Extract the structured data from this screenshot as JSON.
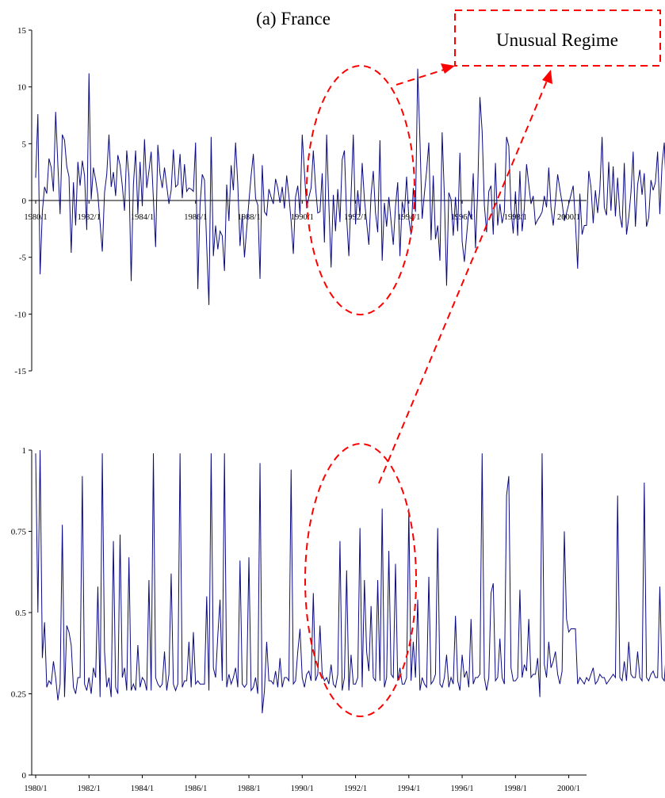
{
  "chart_data": [
    {
      "type": "line",
      "title": "(a) France",
      "ylim": [
        -15,
        15
      ],
      "yticks": [
        "15",
        "10",
        "5",
        "0",
        "-5",
        "-10",
        "-15"
      ],
      "xticks": [
        "1980/1",
        "1982/1",
        "1984/1",
        "1986/1",
        "1988/1",
        "1990/1",
        "1992/1",
        "1994/1",
        "1996/1",
        "1998/1",
        "2000/1"
      ],
      "xrange": [
        "1980/1",
        "2000/9"
      ],
      "series": [
        {
          "color": "#0a0a80",
          "values": [
            2.0,
            7.6,
            -6.5,
            -1.0,
            1.2,
            0.6,
            3.7,
            2.9,
            0.8,
            7.8,
            3.1,
            -1.2,
            5.8,
            5.3,
            3.0,
            2.1,
            -4.6,
            1.6,
            -2.2,
            3.4,
            1.3,
            3.5,
            2.2,
            -2.6,
            11.2,
            0.1,
            2.9,
            1.8,
            0.5,
            -2.0,
            -4.5,
            0.7,
            2.3,
            5.8,
            1.2,
            2.5,
            0.4,
            4.0,
            3.1,
            1.3,
            -0.9,
            4.4,
            2.1,
            -7.1,
            1.4,
            4.4,
            -1.2,
            3.4,
            -0.5,
            5.4,
            1.1,
            2.6,
            4.3,
            0.1,
            -4.1,
            4.9,
            2.3,
            1.1,
            2.9,
            1.3,
            -0.3,
            0.9,
            4.5,
            1.2,
            1.4,
            4.1,
            0.2,
            3.2,
            0.8,
            1.1,
            1.0,
            0.8,
            5.1,
            -7.8,
            -0.4,
            2.3,
            1.8,
            -4.0,
            -9.2,
            5.6,
            -4.9,
            -2.2,
            -4.3,
            -2.7,
            -3.1,
            -6.2,
            1.4,
            -1.8,
            3.1,
            0.9,
            5.1,
            1.4,
            -4.0,
            -1.2,
            -5.0,
            -2.5,
            -0.1,
            2.2,
            4.1,
            0.2,
            -0.4,
            -6.9,
            3.1,
            -1.0,
            -1.3,
            1.0,
            0.3,
            -0.3,
            1.9,
            1.1,
            -0.2,
            1.2,
            -0.7,
            2.2,
            0.4,
            -1.8,
            -4.7,
            0.3,
            1.3,
            -1.2,
            5.8,
            2.5,
            -0.7,
            0.3,
            1.1,
            4.4,
            1.2,
            -1.1,
            -1.0,
            2.4,
            -3.7,
            5.8,
            -0.4,
            -5.9,
            0.5,
            -2.7,
            1.0,
            -1.9,
            3.6,
            4.4,
            -1.5,
            -4.9,
            0.5,
            5.8,
            -2.1,
            0.9,
            -1.3,
            3.3,
            0.1,
            -1.9,
            -3.9,
            0.5,
            2.6,
            -1.1,
            -2.8,
            5.3,
            -5.3,
            -0.2,
            -2.3,
            0.3,
            -1.8,
            -3.9,
            -0.5,
            1.6,
            -4.9,
            -0.1,
            -1.2,
            2.1,
            -1.6,
            -3.0,
            1.1,
            -1.0,
            11.6,
            5.3,
            -1.6,
            0.6,
            2.6,
            5.1,
            -3.5,
            2.2,
            -3.4,
            -2.2,
            -5.3,
            6.0,
            0.4,
            -7.5,
            0.7,
            0.1,
            -3.1,
            0.3,
            -2.7,
            4.2,
            -3.6,
            -5.4,
            -3.1,
            -0.9,
            -1.6,
            2.4,
            -4.2,
            0.8,
            9.1,
            6.1,
            -0.4,
            -2.8,
            0.8,
            1.3,
            -3.0,
            3.3,
            -2.2,
            -0.3,
            -2.0,
            -1.0,
            5.6,
            4.8,
            -0.7,
            -2.9,
            0.8,
            -3.1,
            2.6,
            -2.7,
            -0.7,
            3.2,
            1.4,
            -0.3,
            0.4,
            -2.1,
            -1.7,
            -1.4,
            -1.0,
            0.4,
            -0.6,
            2.9,
            -0.6,
            -2.2,
            -0.1,
            2.3,
            1.0,
            -0.2,
            -1.8,
            -1.1,
            -0.3,
            0.5,
            1.3,
            -1.9,
            -6.0,
            0.6,
            -3.0,
            -2.2,
            -2.2,
            2.6,
            1.2,
            -2.0,
            0.9,
            -1.1,
            1.0,
            5.6,
            -0.6,
            -1.3,
            3.4,
            -0.9,
            3.0,
            -1.4,
            2.0,
            -1.3,
            -2.4,
            3.3,
            -3.0,
            -1.5,
            0.7,
            4.3,
            -2.3,
            1.4,
            2.7,
            0.5,
            2.4,
            -2.3,
            -1.5,
            1.8,
            0.9,
            1.6,
            4.3,
            -1.2,
            3.2,
            5.1,
            0.2,
            2.7,
            2.6,
            -1.6,
            4.7,
            0.1,
            -2.6,
            2.2,
            -1.8,
            2.3,
            -0.1,
            1.8,
            -0.7,
            -4.6,
            1.7,
            -1.4,
            2.3,
            -1.3,
            1.5,
            -0.9,
            -2.6,
            -2.8,
            -1.3,
            -3.3,
            -2.9,
            0.0,
            1.1,
            3.1,
            3.0,
            2.9,
            2.1,
            2.3,
            -0.5,
            1.6,
            -3.2,
            -0.4,
            -1.0,
            3.6,
            0.9,
            1.3,
            -2.3,
            -1.1,
            0.8,
            4.6,
            -2.2,
            3.9,
            3.7,
            0.6,
            2.1,
            1.1,
            4.7,
            -2.4,
            -2.2,
            -2.1,
            2.8,
            4.3,
            0.4
          ]
        }
      ]
    },
    {
      "type": "line",
      "ylim": [
        0,
        1
      ],
      "yticks": [
        "1",
        "0.75",
        "0.5",
        "0.25",
        "0"
      ],
      "xticks": [
        "1980/1",
        "1982/1",
        "1984/1",
        "1986/1",
        "1988/1",
        "1990/1",
        "1992/1",
        "1994/1",
        "1996/1",
        "1998/1",
        "2000/1"
      ],
      "xrange": [
        "1980/1",
        "2000/9"
      ],
      "series": [
        {
          "color": "#0a0a80",
          "values": [
            0.99,
            0.5,
            1.0,
            0.36,
            0.47,
            0.27,
            0.29,
            0.28,
            0.35,
            0.3,
            0.23,
            0.28,
            0.77,
            0.24,
            0.46,
            0.44,
            0.4,
            0.27,
            0.25,
            0.3,
            0.3,
            0.92,
            0.28,
            0.26,
            0.3,
            0.25,
            0.33,
            0.3,
            0.58,
            0.24,
            0.99,
            0.38,
            0.27,
            0.3,
            0.24,
            0.72,
            0.27,
            0.25,
            0.74,
            0.3,
            0.33,
            0.26,
            0.67,
            0.26,
            0.28,
            0.26,
            0.4,
            0.27,
            0.3,
            0.29,
            0.26,
            0.6,
            0.26,
            0.99,
            0.3,
            0.28,
            0.27,
            0.28,
            0.38,
            0.26,
            0.31,
            0.62,
            0.28,
            0.26,
            0.28,
            0.99,
            0.27,
            0.29,
            0.29,
            0.41,
            0.27,
            0.44,
            0.28,
            0.29,
            0.28,
            0.28,
            0.28,
            0.55,
            0.26,
            0.99,
            0.33,
            0.3,
            0.43,
            0.54,
            0.29,
            0.99,
            0.27,
            0.31,
            0.28,
            0.3,
            0.33,
            0.27,
            0.66,
            0.28,
            0.27,
            0.28,
            0.67,
            0.26,
            0.27,
            0.3,
            0.25,
            0.96,
            0.19,
            0.26,
            0.41,
            0.29,
            0.29,
            0.28,
            0.32,
            0.27,
            0.36,
            0.27,
            0.3,
            0.3,
            0.29,
            0.94,
            0.28,
            0.29,
            0.38,
            0.45,
            0.3,
            0.27,
            0.31,
            0.32,
            0.29,
            0.56,
            0.29,
            0.31,
            0.46,
            0.31,
            0.29,
            0.3,
            0.28,
            0.34,
            0.28,
            0.27,
            0.31,
            0.72,
            0.26,
            0.3,
            0.63,
            0.26,
            0.37,
            0.28,
            0.28,
            0.3,
            0.76,
            0.27,
            0.6,
            0.38,
            0.32,
            0.52,
            0.3,
            0.29,
            0.6,
            0.29,
            0.82,
            0.27,
            0.3,
            0.69,
            0.31,
            0.3,
            0.65,
            0.29,
            0.33,
            0.28,
            0.28,
            0.3,
            0.82,
            0.29,
            0.41,
            0.3,
            0.54,
            0.26,
            0.3,
            0.28,
            0.27,
            0.61,
            0.28,
            0.29,
            0.31,
            0.76,
            0.28,
            0.27,
            0.3,
            0.37,
            0.27,
            0.3,
            0.28,
            0.49,
            0.29,
            0.26,
            0.37,
            0.3,
            0.32,
            0.27,
            0.48,
            0.28,
            0.3,
            0.3,
            0.31,
            0.99,
            0.3,
            0.26,
            0.3,
            0.56,
            0.59,
            0.29,
            0.3,
            0.42,
            0.3,
            0.28,
            0.86,
            0.92,
            0.33,
            0.29,
            0.29,
            0.3,
            0.57,
            0.3,
            0.34,
            0.32,
            0.48,
            0.3,
            0.31,
            0.31,
            0.36,
            0.24,
            0.99,
            0.34,
            0.3,
            0.41,
            0.33,
            0.35,
            0.38,
            0.31,
            0.28,
            0.32,
            0.75,
            0.48,
            0.44,
            0.45,
            0.45,
            0.45,
            0.28,
            0.3,
            0.29,
            0.28,
            0.3,
            0.29,
            0.31,
            0.33,
            0.28,
            0.29,
            0.31,
            0.3,
            0.3,
            0.28,
            0.29,
            0.3,
            0.31,
            0.3,
            0.86,
            0.3,
            0.29,
            0.35,
            0.29,
            0.41,
            0.31,
            0.3,
            0.3,
            0.38,
            0.3,
            0.29,
            0.9,
            0.3,
            0.29,
            0.31,
            0.32,
            0.3,
            0.3,
            0.58,
            0.3,
            0.29,
            0.39,
            0.3,
            0.3,
            0.31,
            0.62,
            0.3,
            0.36,
            0.29,
            0.36,
            0.31,
            0.38,
            0.31,
            0.29,
            0.3,
            0.46,
            0.29,
            0.31,
            0.66,
            0.31,
            0.3,
            0.32,
            0.31,
            0.31,
            0.33,
            0.29,
            0.32,
            0.3,
            0.5,
            0.29,
            0.3,
            0.31,
            0.29,
            0.36,
            0.31,
            0.44,
            0.29,
            0.31,
            0.31,
            0.32,
            0.3,
            0.3,
            0.32,
            0.29,
            0.29,
            0.36,
            0.31,
            0.59,
            0.3,
            0.38,
            0.31,
            0.33,
            0.33,
            0.3,
            0.31,
            0.3,
            0.29,
            0.47,
            0.3,
            0.38,
            0.29,
            0.31,
            0.42,
            0.45,
            0.29,
            0.32,
            0.3,
            0.29,
            0.54,
            0.3,
            0.29,
            0.28,
            0.45,
            0.5,
            0.48,
            0.42,
            0.33,
            0.41,
            0.28
          ]
        }
      ]
    }
  ],
  "annotation": {
    "label": "Unusual Regime",
    "color": "#ff0000"
  }
}
